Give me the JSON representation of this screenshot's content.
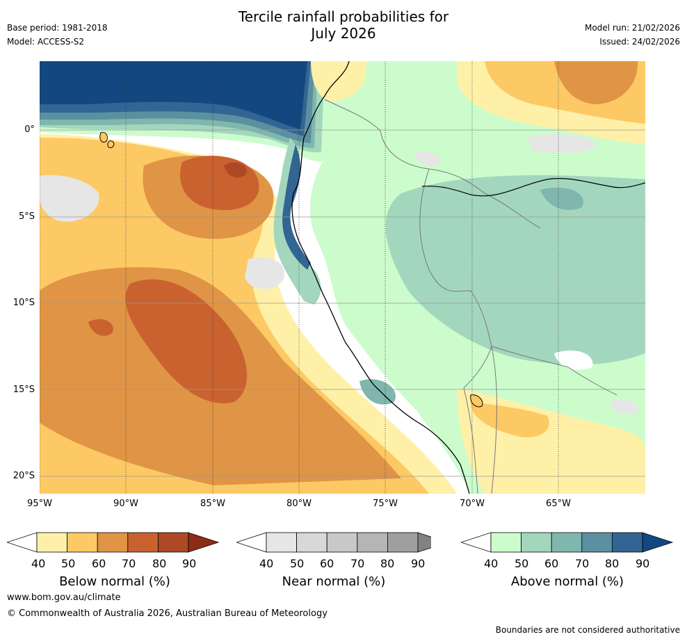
{
  "title": {
    "line1": "Tercile rainfall probabilities for",
    "line2": "July 2026"
  },
  "info": {
    "base_period": "Base period: 1981-2018",
    "model": "Model: ACCESS-S2",
    "model_run": "Model run: 21/02/2026",
    "issued": "Issued: 24/02/2026"
  },
  "map": {
    "lat_labels": [
      "0°",
      "5°S",
      "10°S",
      "15°S",
      "20°S"
    ],
    "lon_labels": [
      "95°W",
      "90°W",
      "85°W",
      "80°W",
      "75°W",
      "70°W",
      "65°W"
    ]
  },
  "colorbars": [
    {
      "title": "Below normal (%)",
      "ticks": [
        "40",
        "50",
        "60",
        "70",
        "80",
        "90"
      ],
      "colors": [
        "#ffffff",
        "#fff0a8",
        "#fdc964",
        "#e09445",
        "#c9622f",
        "#ad4925",
        "#8e2d16"
      ]
    },
    {
      "title": "Near normal (%)",
      "ticks": [
        "40",
        "50",
        "60",
        "70",
        "80",
        "90"
      ],
      "colors": [
        "#ffffff",
        "#e6e6e6",
        "#d8d8d8",
        "#c8c8c8",
        "#b5b5b5",
        "#9f9f9f",
        "#828282"
      ]
    },
    {
      "title": "Above normal (%)",
      "ticks": [
        "40",
        "50",
        "60",
        "70",
        "80",
        "90"
      ],
      "colors": [
        "#ffffff",
        "#ccfccc",
        "#a3d7bd",
        "#7fb7ae",
        "#5b90a0",
        "#336594",
        "#12487f"
      ]
    }
  ],
  "footer": {
    "website": "www.bom.gov.au/climate",
    "copyright": "© Commonwealth of Australia 2026, Australian Bureau of Meteorology",
    "disclaimer": "Boundaries are not considered authoritative"
  }
}
